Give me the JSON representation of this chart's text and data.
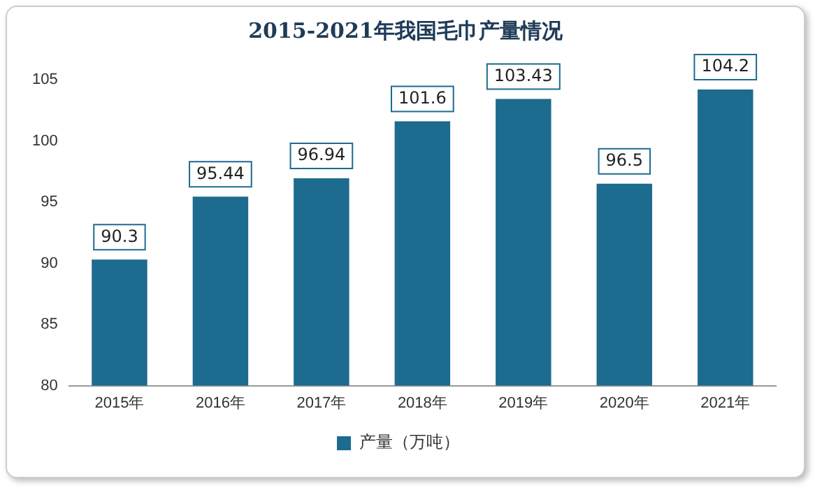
{
  "chart_data": {
    "type": "bar",
    "title": "2015-2021年我国毛巾产量情况",
    "categories": [
      "2015年",
      "2016年",
      "2017年",
      "2018年",
      "2019年",
      "2020年",
      "2021年"
    ],
    "series": [
      {
        "name": "产量（万吨）",
        "color": "#1d6b8e",
        "values": [
          90.3,
          95.44,
          96.94,
          101.6,
          103.43,
          96.5,
          104.2
        ]
      }
    ],
    "ylim": [
      80,
      105
    ],
    "yticks": [
      80,
      85,
      90,
      95,
      100,
      105
    ],
    "grid": false,
    "legend": "bottom",
    "data_labels": true
  }
}
